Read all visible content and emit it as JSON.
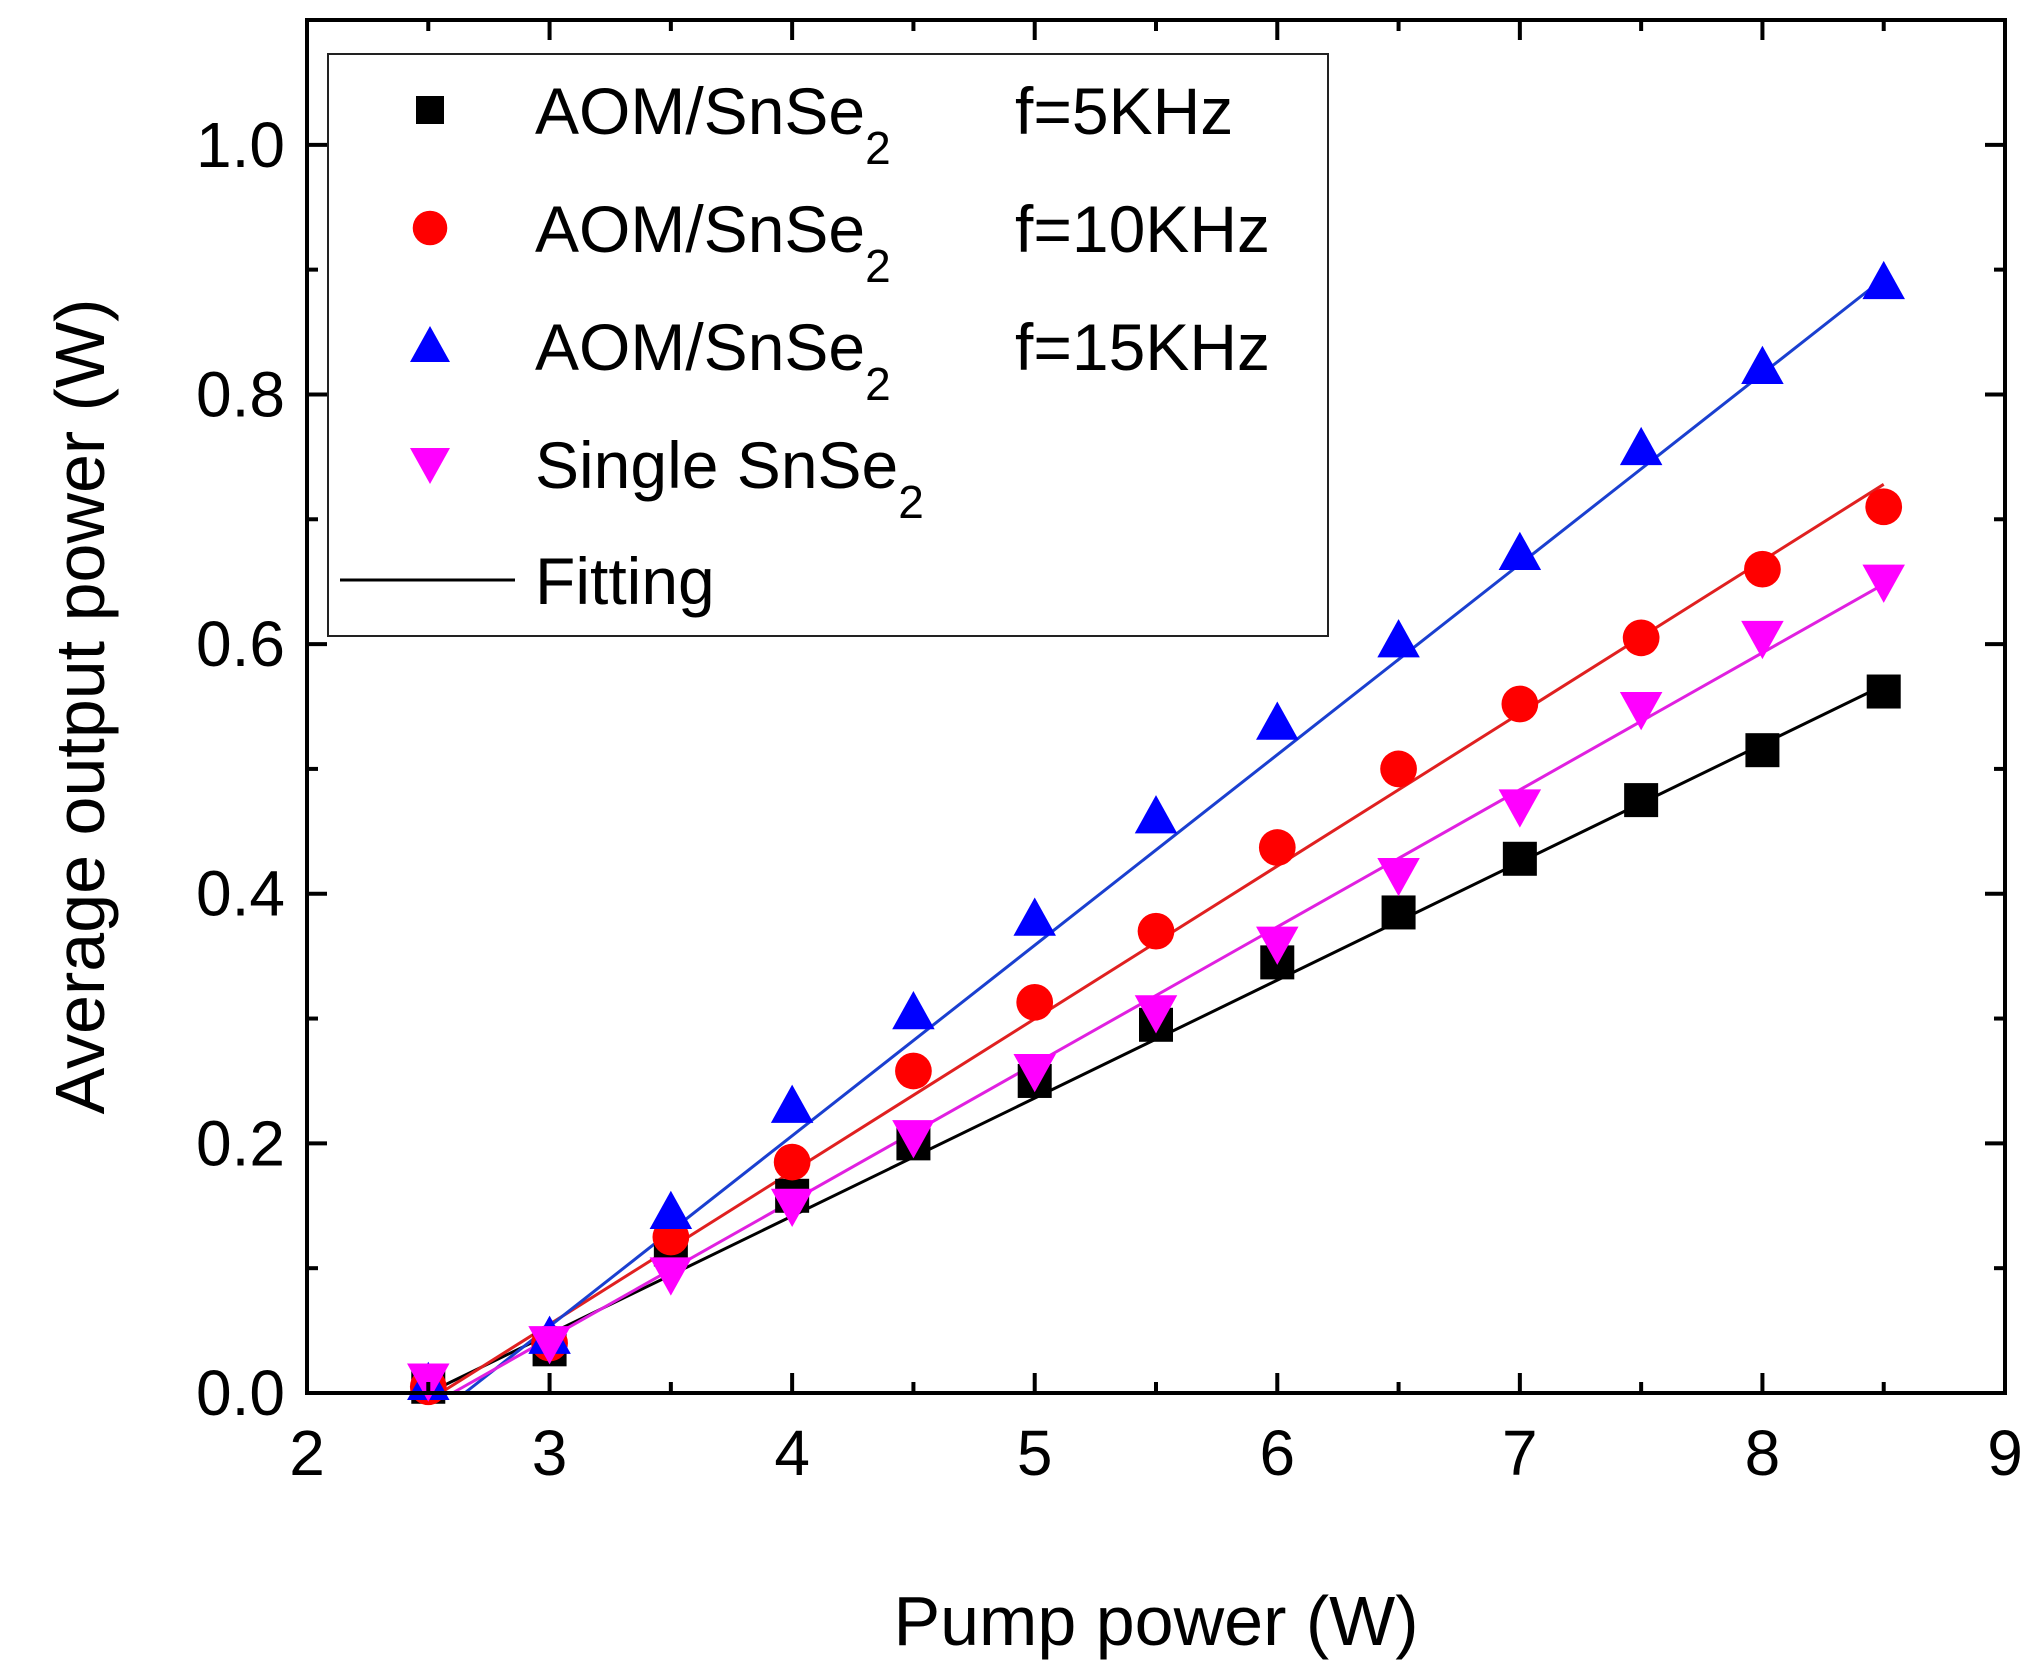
{
  "chart_data": {
    "type": "scatter",
    "title": "",
    "xlabel": "Pump  power (W)",
    "ylabel": "Average output power (W)",
    "xlim": [
      2,
      9
    ],
    "ylim": [
      0,
      1.1
    ],
    "x_ticks": [
      2,
      3,
      4,
      5,
      6,
      7,
      8,
      9
    ],
    "y_ticks": [
      0.0,
      0.2,
      0.4,
      0.6,
      0.8,
      1.0
    ],
    "x_tick_labels": [
      "2",
      "3",
      "4",
      "5",
      "6",
      "7",
      "8",
      "9"
    ],
    "y_tick_labels": [
      "0.0",
      "0.2",
      "0.4",
      "0.6",
      "0.8",
      "1.0"
    ],
    "legend_position": "top-left",
    "fitting_label": "Fitting",
    "x": [
      2.5,
      3.0,
      3.5,
      4.0,
      4.5,
      5.0,
      5.5,
      6.0,
      6.5,
      7.0,
      7.5,
      8.0,
      8.5
    ],
    "series": [
      {
        "name": "AOM/SnSe2 f=5KHz",
        "legend_main": "AOM/SnSe",
        "legend_sub": "2",
        "legend_freq": "f=5KHz",
        "marker": "square",
        "color": "#000000",
        "fit_color": "#000000",
        "values": [
          0.005,
          0.035,
          0.115,
          0.158,
          0.2,
          0.25,
          0.295,
          0.345,
          0.385,
          0.428,
          0.475,
          0.515,
          0.562
        ],
        "fit": [
          [
            2.5,
            0.0
          ],
          [
            8.5,
            0.567
          ]
        ]
      },
      {
        "name": "AOM/SnSe2 f=10KHz",
        "legend_main": "AOM/SnSe",
        "legend_sub": "2",
        "legend_freq": "f=10KHz",
        "marker": "circle",
        "color": "#ff0000",
        "fit_color": "#e02020",
        "values": [
          0.005,
          0.04,
          0.125,
          0.185,
          0.258,
          0.313,
          0.37,
          0.437,
          0.5,
          0.552,
          0.605,
          0.66,
          0.71
        ],
        "fit": [
          [
            2.55,
            0.0
          ],
          [
            8.5,
            0.728
          ]
        ]
      },
      {
        "name": "AOM/SnSe2 f=15KHz",
        "legend_main": "AOM/SnSe",
        "legend_sub": "2",
        "legend_freq": "f=15KHz",
        "marker": "triangle-up",
        "color": "#0000ff",
        "fit_color": "#1a3fd0",
        "values": [
          0.008,
          0.045,
          0.145,
          0.23,
          0.305,
          0.38,
          0.462,
          0.537,
          0.603,
          0.673,
          0.757,
          0.822,
          0.89
        ],
        "fit": [
          [
            2.65,
            0.0
          ],
          [
            8.5,
            0.893
          ]
        ]
      },
      {
        "name": "Single SnSe2",
        "legend_main": "Single SnSe",
        "legend_sub": "2",
        "legend_freq": "",
        "marker": "triangle-down",
        "color": "#ff00ff",
        "fit_color": "#e020e0",
        "values": [
          0.01,
          0.04,
          0.095,
          0.15,
          0.205,
          0.258,
          0.305,
          0.36,
          0.415,
          0.47,
          0.548,
          0.605,
          0.65
        ],
        "fit": [
          [
            2.6,
            0.0
          ],
          [
            8.5,
            0.648
          ]
        ]
      }
    ]
  }
}
